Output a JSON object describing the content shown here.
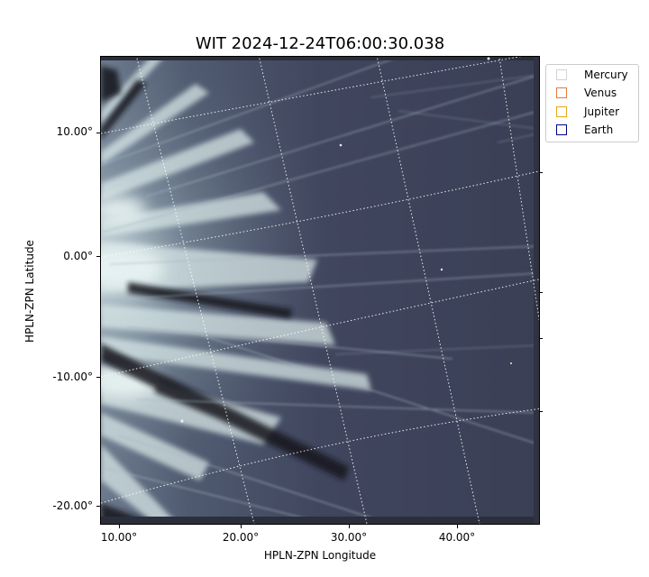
{
  "figure": {
    "title": "WIT 2024-12-24T06:00:30.038",
    "xlabel": "HPLN-ZPN Longitude",
    "ylabel": "HPLN-ZPN Latitude"
  },
  "chart_data": {
    "type": "heatmap",
    "title": "WIT 2024-12-24T06:00:30.038",
    "xlabel": "HPLN-ZPN Longitude",
    "ylabel": "HPLN-ZPN Latitude",
    "colormap": "bone",
    "x_ticks": [
      "10.00°",
      "20.00°",
      "30.00°",
      "40.00°"
    ],
    "y_ticks": [
      "10.00°",
      "0.00°",
      "-10.00°",
      "-20.00°"
    ],
    "grid": "on (dotted white, curved world-coordinate graticule)",
    "legend": {
      "placement": "outside-top-right",
      "entries": [
        {
          "name": "Mercury",
          "color": "#d3d3d3"
        },
        {
          "name": "Venus",
          "color": "#e07a3a"
        },
        {
          "name": "Jupiter",
          "color": "#e6a817"
        },
        {
          "name": "Earth",
          "color": "#000080"
        }
      ]
    }
  }
}
